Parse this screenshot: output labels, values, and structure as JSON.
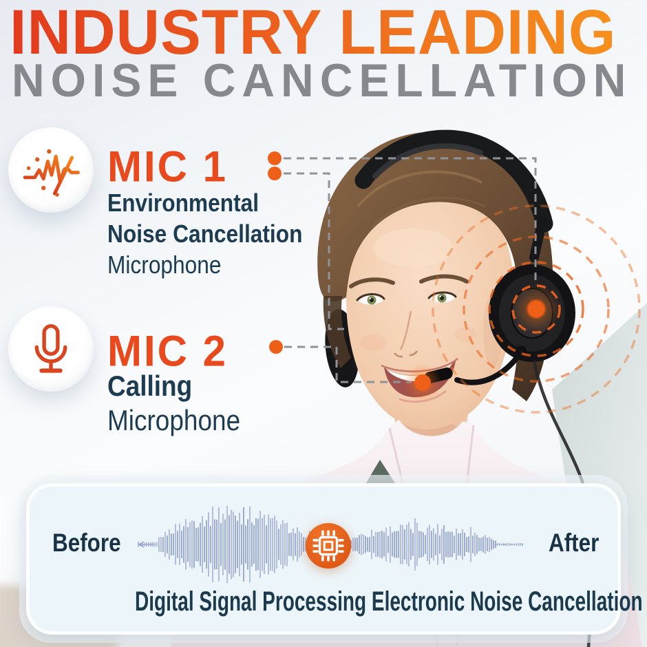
{
  "title": {
    "line1": "INDUSTRY LEADING",
    "line2": "NOISE CANCELLATION"
  },
  "mic1": {
    "label": "MIC 1",
    "desc_line1": "Environmental",
    "desc_line2": "Noise Cancellation",
    "desc_line3": "Microphone",
    "icon": "noise-wave-icon"
  },
  "mic2": {
    "label": "MIC 2",
    "desc_line1": "Calling",
    "desc_line2": "Microphone",
    "icon": "microphone-icon"
  },
  "dsp": {
    "before_label": "Before",
    "after_label": "After",
    "caption": "Digital Signal Processing Electronic Noise Cancellation",
    "icon": "dsp-chip-icon"
  },
  "colors": {
    "accent_orange": "#ee5f17",
    "title_gradient_start": "#e23a1d",
    "title_gradient_end": "#f6901d",
    "title_gray": "#85888c",
    "navy_text": "#1d3c51",
    "dash_gray": "#8f9296",
    "dashed_circle_orange": "#e8611c",
    "waveform_blue": "#a9b4d9",
    "card_background": "#ecf5f9",
    "chip_circle": "#e8611b"
  }
}
